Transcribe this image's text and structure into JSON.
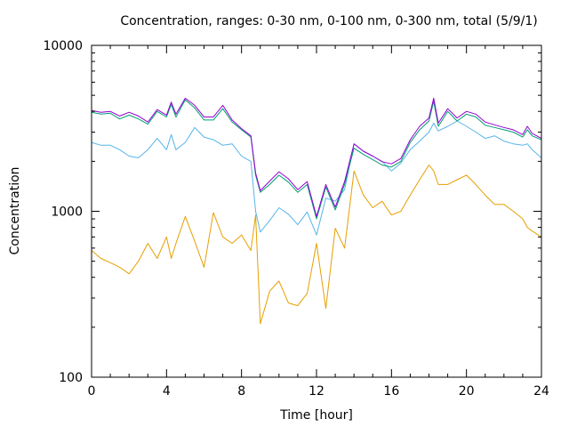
{
  "chart_data": {
    "type": "line",
    "title": "Concentration, ranges: 0-30 nm, 0-100 nm, 0-300 nm, total (5/9/1)",
    "xlabel": "Time [hour]",
    "ylabel": "Concentration",
    "xlim": [
      0,
      24
    ],
    "ylim": [
      100,
      10000
    ],
    "yscale": "log",
    "grid": false,
    "legend": "none",
    "x_ticks": [
      "0",
      "4",
      "8",
      "12",
      "16",
      "20",
      "24"
    ],
    "x_tick_values": [
      0,
      4,
      8,
      12,
      16,
      20,
      24
    ],
    "y_ticks": [
      "100",
      "1000",
      "10000"
    ],
    "y_tick_values": [
      100,
      1000,
      10000
    ],
    "x": [
      0,
      0.5,
      1,
      1.5,
      2,
      2.5,
      3,
      3.5,
      4,
      4.25,
      4.5,
      5,
      5.5,
      6,
      6.5,
      7,
      7.5,
      8,
      8.5,
      8.75,
      9,
      9.5,
      10,
      10.5,
      11,
      11.5,
      12,
      12.5,
      13,
      13.5,
      14,
      14.5,
      15,
      15.5,
      16,
      16.5,
      17,
      17.5,
      18,
      18.25,
      18.5,
      19,
      19.5,
      20,
      20.5,
      21,
      21.5,
      22,
      22.5,
      23,
      23.25,
      23.5,
      24
    ],
    "series": [
      {
        "name": "0-30 nm",
        "color": "#e69f00",
        "values": [
          580,
          520,
          490,
          460,
          420,
          500,
          640,
          520,
          700,
          520,
          640,
          930,
          660,
          460,
          980,
          700,
          640,
          720,
          580,
          950,
          210,
          330,
          380,
          280,
          270,
          320,
          640,
          260,
          790,
          600,
          1750,
          1250,
          1050,
          1150,
          950,
          1000,
          1250,
          1550,
          1900,
          1750,
          1450,
          1450,
          1550,
          1650,
          1450,
          1250,
          1100,
          1100,
          1000,
          900,
          800,
          760,
          700
        ]
      },
      {
        "name": "0-100 nm",
        "color": "#56b4e9",
        "values": [
          2600,
          2500,
          2500,
          2350,
          2150,
          2100,
          2350,
          2750,
          2350,
          2900,
          2350,
          2600,
          3200,
          2800,
          2700,
          2500,
          2550,
          2150,
          2000,
          1000,
          750,
          880,
          1050,
          960,
          830,
          990,
          720,
          1200,
          1150,
          1350,
          2550,
          2300,
          2150,
          2000,
          1750,
          1950,
          2350,
          2650,
          3000,
          3400,
          3050,
          3250,
          3500,
          3250,
          3000,
          2750,
          2850,
          2650,
          2550,
          2500,
          2550,
          2350,
          2100
        ]
      },
      {
        "name": "0-300 nm",
        "color": "#009e73",
        "values": [
          3950,
          3850,
          3900,
          3600,
          3800,
          3600,
          3350,
          4000,
          3700,
          4400,
          3700,
          4700,
          4200,
          3550,
          3550,
          4150,
          3450,
          3100,
          2800,
          1650,
          1300,
          1450,
          1650,
          1500,
          1300,
          1450,
          900,
          1400,
          1020,
          1450,
          2400,
          2200,
          2050,
          1900,
          1850,
          2000,
          2600,
          3100,
          3500,
          4600,
          3250,
          4000,
          3500,
          3850,
          3700,
          3300,
          3200,
          3100,
          3000,
          2800,
          3100,
          2850,
          2700
        ]
      },
      {
        "name": "total",
        "color": "#9400d3",
        "values": [
          4050,
          3950,
          4000,
          3750,
          3950,
          3750,
          3450,
          4100,
          3800,
          4550,
          3850,
          4800,
          4350,
          3700,
          3700,
          4350,
          3550,
          3150,
          2850,
          1700,
          1330,
          1520,
          1730,
          1570,
          1350,
          1510,
          930,
          1450,
          1060,
          1510,
          2550,
          2300,
          2150,
          1990,
          1930,
          2080,
          2700,
          3250,
          3650,
          4800,
          3400,
          4150,
          3650,
          4000,
          3850,
          3450,
          3320,
          3200,
          3100,
          2900,
          3250,
          2950,
          2750
        ]
      }
    ]
  }
}
